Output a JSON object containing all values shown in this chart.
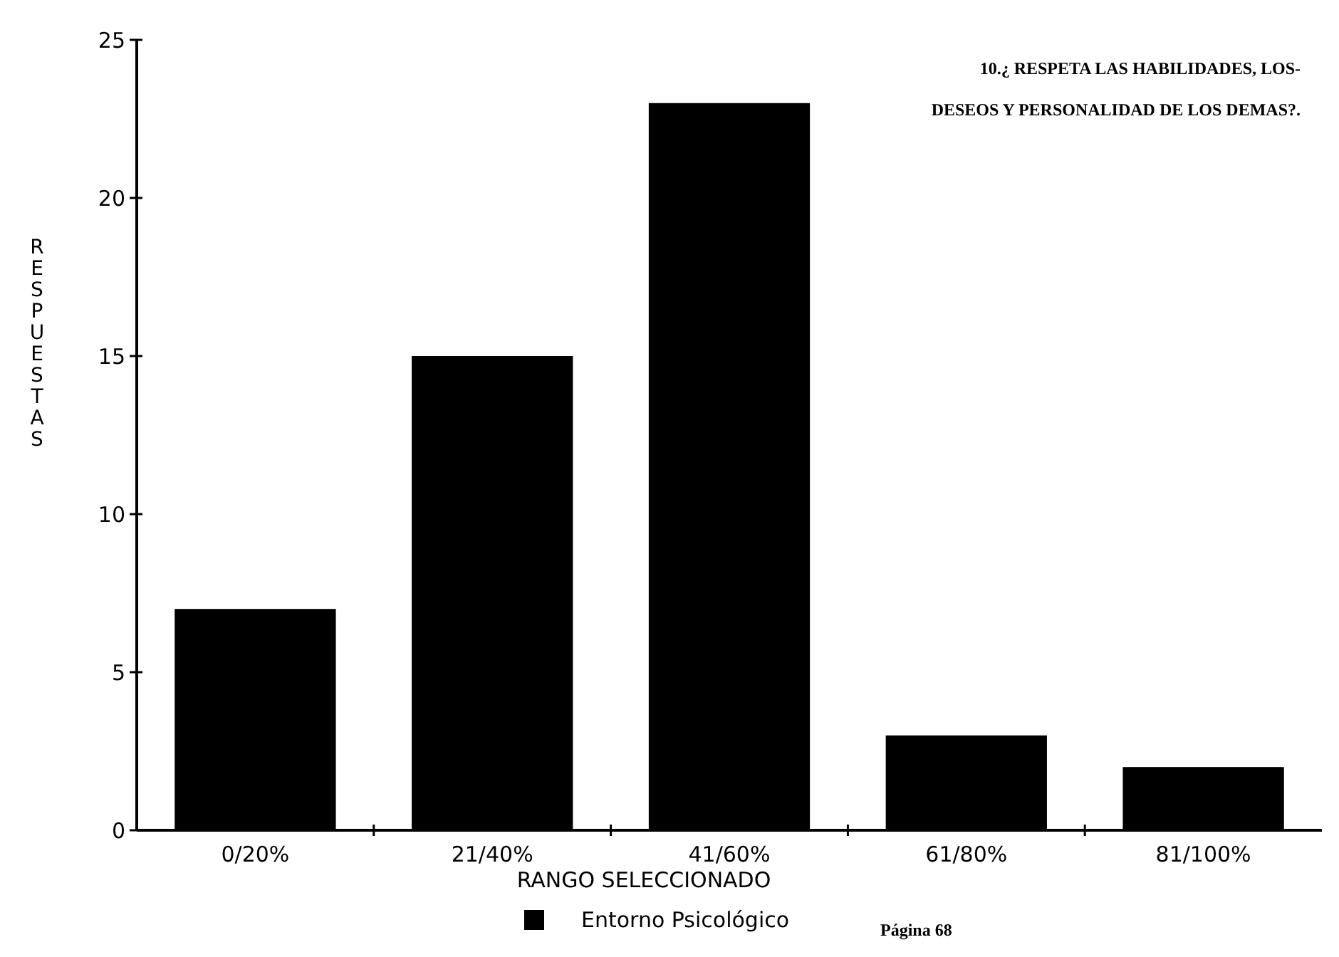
{
  "chart_data": {
    "type": "bar",
    "title": "10.¿ RESPETA LAS HABILIDADES, LOS- DESEOS Y PERSONALIDAD DE LOS DEMAS?.",
    "xlabel": "RANGO SELECCIONADO",
    "ylabel": "RESPUESTAS",
    "categories": [
      "0/20%",
      "21/40%",
      "41/60%",
      "61/80%",
      "81/100%"
    ],
    "series": [
      {
        "name": "Entorno Psicológico",
        "color": "#000000",
        "values": [
          7,
          15,
          23,
          3,
          2
        ]
      }
    ],
    "ylim": [
      0,
      25
    ],
    "yticks": [
      0,
      5,
      10,
      15,
      20,
      25
    ],
    "grid": false,
    "legend": "bottom",
    "annotations": [
      "Página 68"
    ]
  }
}
